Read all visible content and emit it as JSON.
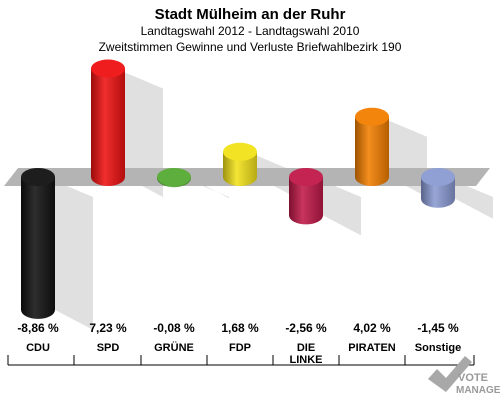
{
  "chart_data": {
    "type": "bar",
    "title": "Stadt Mülheim an der Ruhr",
    "subtitle": "Landtagswahl 2012 - Landtagswahl 2010",
    "subtitle2": "Zweitstimmen Gewinne und Verluste Briefwahlbezirk 190",
    "categories": [
      "CDU",
      "SPD",
      "GRÜNE",
      "FDP",
      "DIE LINKE",
      "PIRATEN",
      "Sonstige"
    ],
    "category_lines": [
      [
        "CDU"
      ],
      [
        "SPD"
      ],
      [
        "GRÜNE"
      ],
      [
        "FDP"
      ],
      [
        "DIE",
        "LINKE"
      ],
      [
        "PIRATEN"
      ],
      [
        "Sonstige"
      ]
    ],
    "values": [
      -8.86,
      7.23,
      -0.08,
      1.68,
      -2.56,
      4.02,
      -1.45
    ],
    "value_labels": [
      "-8,86 %",
      "7,23 %",
      "-0,08 %",
      "1,68 %",
      "-2,56 %",
      "4,02 %",
      "-1,45 %"
    ],
    "colors": [
      "#111111",
      "#ee1111",
      "#55aa33",
      "#f2e21a",
      "#c01848",
      "#f27f00",
      "#8a9ad2"
    ],
    "ylim": [
      -9,
      9
    ],
    "grid": false,
    "legend": "none"
  },
  "watermark": {
    "text": "VOTE",
    "text2": "MANAGER"
  }
}
